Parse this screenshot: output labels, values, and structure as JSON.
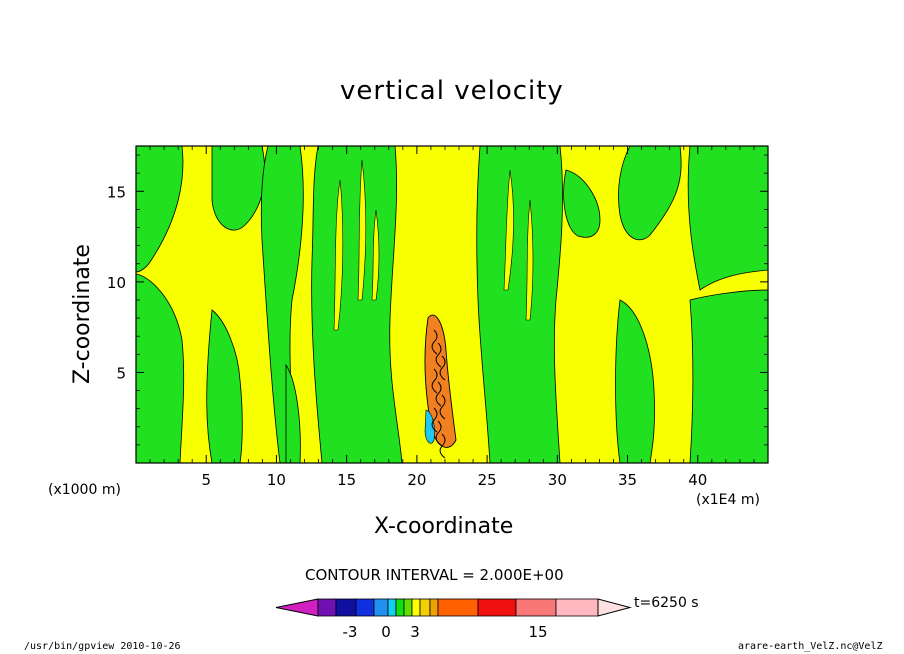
{
  "chart_data": {
    "type": "heatmap",
    "title": "vertical velocity",
    "xlabel": "X-coordinate",
    "ylabel": "Z-coordinate",
    "x_unit_left": "(x1000 m)",
    "x_unit_right": "(x1E4 m)",
    "xlim": [
      0,
      45
    ],
    "ylim": [
      0,
      17.5
    ],
    "x_ticks": [
      5,
      10,
      15,
      20,
      25,
      30,
      35,
      40
    ],
    "y_ticks": [
      5,
      10,
      15
    ],
    "contour_interval": "CONTOUR INTERVAL = 2.000E+00",
    "time_label": "t=6250 s",
    "colorbar_ticks": [
      "-3",
      "0",
      "3",
      "15"
    ],
    "colorbar_colors": [
      "#d020c0",
      "#7010b0",
      "#1010a0",
      "#1030e0",
      "#2090f0",
      "#10d0f0",
      "#10e010",
      "#60e000",
      "#ffff00",
      "#f0d000",
      "#f0a000",
      "#ff6000",
      "#f01010",
      "#f87878",
      "#ffb8c0",
      "#ffe0e0"
    ],
    "field_colors": {
      "negative_weak": "#20e020",
      "positive_weak": "#f8ff00",
      "positive_strong": "#f08020",
      "negative_strong": "#20c8f0"
    }
  },
  "footer": {
    "left": "/usr/bin/gpview  2010-10-26",
    "right": "arare-earth_VelZ.nc@VelZ"
  }
}
